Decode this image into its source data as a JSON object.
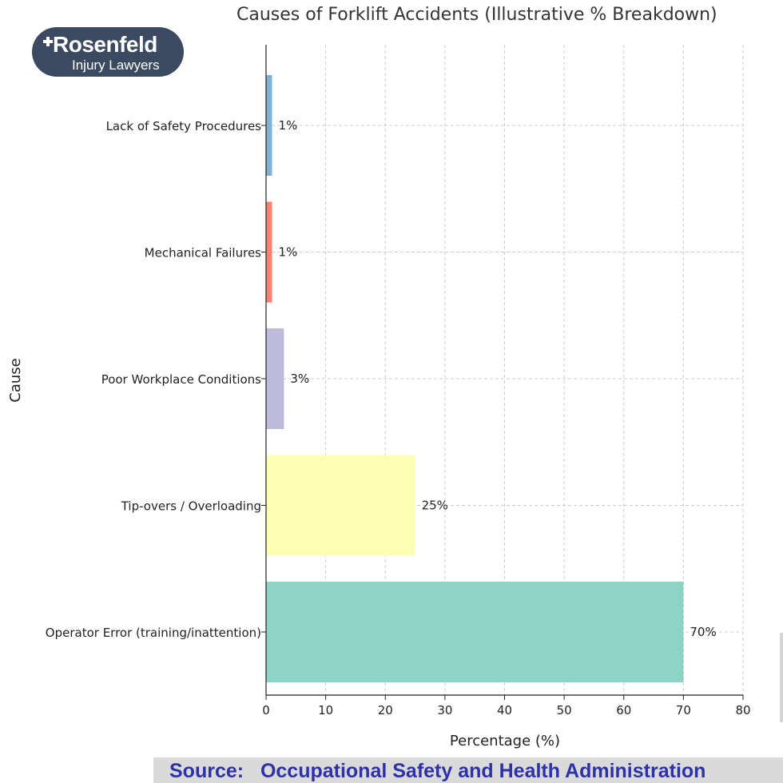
{
  "logo": {
    "name": "Rosenfeld",
    "tagline": "Injury Lawyers"
  },
  "source": {
    "label": "Source:",
    "text": "Occupational Safety and Health Administration"
  },
  "chart_data": {
    "type": "bar",
    "orientation": "horizontal",
    "title": "Causes of Forklift Accidents (Illustrative % Breakdown)",
    "xlabel": "Percentage (%)",
    "ylabel": "Cause",
    "xlim": [
      0,
      80
    ],
    "xticks": [
      0,
      10,
      20,
      30,
      40,
      50,
      60,
      70,
      80
    ],
    "grid": true,
    "categories": [
      "Lack of Safety Procedures",
      "Mechanical Failures",
      "Poor Workplace Conditions",
      "Tip-overs / Overloading",
      "Operator Error (training/inattention)"
    ],
    "values": [
      1,
      1,
      3,
      25,
      70
    ],
    "data_labels": [
      "1%",
      "1%",
      "3%",
      "25%",
      "70%"
    ],
    "colors": [
      "#80b1d3",
      "#fb8072",
      "#bebada",
      "#ffffb3",
      "#8dd3c7"
    ]
  }
}
